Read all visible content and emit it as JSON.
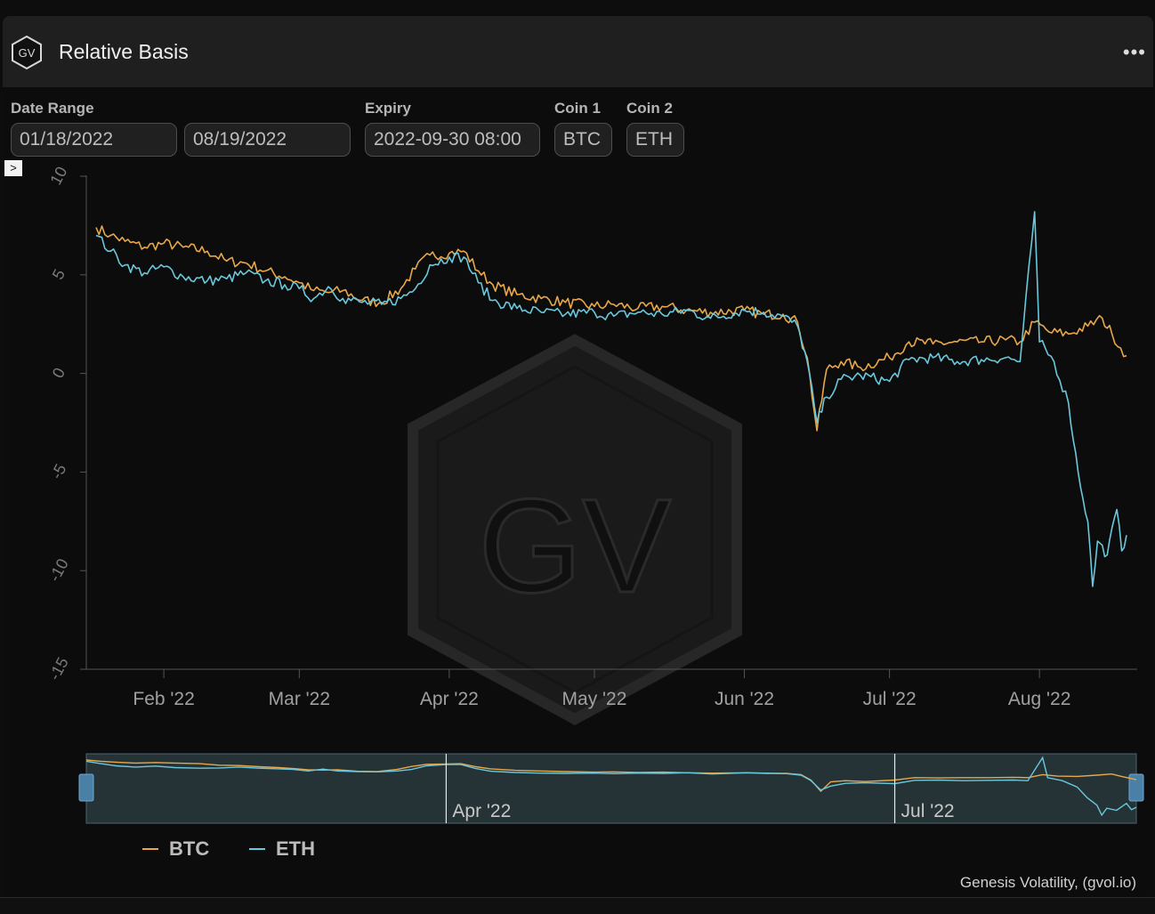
{
  "header": {
    "title": "Relative Basis",
    "logo_text": "GV",
    "more_icon": "more-horizontal-icon"
  },
  "controls": {
    "date_range_label": "Date Range",
    "start_date": "01/18/2022",
    "end_date": "08/19/2022",
    "expiry_label": "Expiry",
    "expiry": "2022-09-30 08:00",
    "coin1_label": "Coin 1",
    "coin1": "BTC",
    "coin2_label": "Coin 2",
    "coin2": "ETH"
  },
  "toggle_glyph": ">",
  "watermark": "GV",
  "navigator": {
    "labels": [
      "Apr '22",
      "Jul '22"
    ]
  },
  "credit": "Genesis Volatility, (gvol.io)",
  "chart_data": {
    "type": "line",
    "title": "",
    "xlabel": "",
    "ylabel": "",
    "x_range": [
      "2022-01-18",
      "2022-08-19"
    ],
    "ylim": [
      -15,
      10
    ],
    "y_ticks": [
      "10",
      "5",
      "0",
      "-5",
      "-10",
      "-15"
    ],
    "x_ticks": [
      {
        "date": "2022-02-01",
        "label": "Feb '22"
      },
      {
        "date": "2022-03-01",
        "label": "Mar '22"
      },
      {
        "date": "2022-04-01",
        "label": "Apr '22"
      },
      {
        "date": "2022-05-01",
        "label": "May '22"
      },
      {
        "date": "2022-06-01",
        "label": "Jun '22"
      },
      {
        "date": "2022-07-01",
        "label": "Jul '22"
      },
      {
        "date": "2022-08-01",
        "label": "Aug '22"
      }
    ],
    "grid": false,
    "legend_position": "bottom-left",
    "series": [
      {
        "name": "BTC",
        "color": "#e8a84a",
        "points": [
          [
            "2022-01-18",
            7.4
          ],
          [
            "2022-01-21",
            7.0
          ],
          [
            "2022-01-24",
            6.7
          ],
          [
            "2022-01-28",
            6.4
          ],
          [
            "2022-02-01",
            6.6
          ],
          [
            "2022-02-05",
            6.4
          ],
          [
            "2022-02-10",
            6.2
          ],
          [
            "2022-02-14",
            5.7
          ],
          [
            "2022-02-18",
            5.6
          ],
          [
            "2022-02-22",
            5.2
          ],
          [
            "2022-02-26",
            4.9
          ],
          [
            "2022-03-01",
            4.6
          ],
          [
            "2022-03-04",
            4.2
          ],
          [
            "2022-03-07",
            4.1
          ],
          [
            "2022-03-10",
            4.2
          ],
          [
            "2022-03-14",
            3.7
          ],
          [
            "2022-03-18",
            3.6
          ],
          [
            "2022-03-22",
            4.3
          ],
          [
            "2022-03-25",
            5.3
          ],
          [
            "2022-03-28",
            6.0
          ],
          [
            "2022-04-01",
            6.1
          ],
          [
            "2022-04-04",
            6.2
          ],
          [
            "2022-04-07",
            5.2
          ],
          [
            "2022-04-10",
            4.5
          ],
          [
            "2022-04-15",
            4.0
          ],
          [
            "2022-04-20",
            3.8
          ],
          [
            "2022-04-25",
            3.6
          ],
          [
            "2022-05-01",
            3.4
          ],
          [
            "2022-05-05",
            3.5
          ],
          [
            "2022-05-10",
            3.3
          ],
          [
            "2022-05-15",
            3.4
          ],
          [
            "2022-05-20",
            3.2
          ],
          [
            "2022-05-25",
            3.1
          ],
          [
            "2022-06-01",
            3.2
          ],
          [
            "2022-06-05",
            3.0
          ],
          [
            "2022-06-09",
            3.0
          ],
          [
            "2022-06-12",
            2.6
          ],
          [
            "2022-06-14",
            0.8
          ],
          [
            "2022-06-16",
            -2.9
          ],
          [
            "2022-06-18",
            0.2
          ],
          [
            "2022-06-21",
            0.6
          ],
          [
            "2022-06-25",
            0.3
          ],
          [
            "2022-07-01",
            0.8
          ],
          [
            "2022-07-05",
            1.6
          ],
          [
            "2022-07-10",
            1.5
          ],
          [
            "2022-07-15",
            1.6
          ],
          [
            "2022-07-20",
            1.6
          ],
          [
            "2022-07-25",
            1.7
          ],
          [
            "2022-07-28",
            1.6
          ],
          [
            "2022-07-31",
            2.6
          ],
          [
            "2022-08-03",
            2.1
          ],
          [
            "2022-08-07",
            2.0
          ],
          [
            "2022-08-11",
            2.4
          ],
          [
            "2022-08-14",
            2.8
          ],
          [
            "2022-08-16",
            2.0
          ],
          [
            "2022-08-19",
            0.9
          ]
        ]
      },
      {
        "name": "ETH",
        "color": "#6ac8dc",
        "points": [
          [
            "2022-01-18",
            7.0
          ],
          [
            "2022-01-21",
            6.2
          ],
          [
            "2022-01-24",
            5.5
          ],
          [
            "2022-01-28",
            5.1
          ],
          [
            "2022-02-01",
            5.4
          ],
          [
            "2022-02-05",
            4.9
          ],
          [
            "2022-02-10",
            4.7
          ],
          [
            "2022-02-14",
            4.8
          ],
          [
            "2022-02-18",
            5.1
          ],
          [
            "2022-02-22",
            4.7
          ],
          [
            "2022-02-26",
            4.5
          ],
          [
            "2022-03-01",
            4.3
          ],
          [
            "2022-03-04",
            3.8
          ],
          [
            "2022-03-07",
            4.4
          ],
          [
            "2022-03-10",
            3.8
          ],
          [
            "2022-03-14",
            3.6
          ],
          [
            "2022-03-18",
            3.5
          ],
          [
            "2022-03-22",
            3.8
          ],
          [
            "2022-03-25",
            4.3
          ],
          [
            "2022-03-28",
            5.5
          ],
          [
            "2022-04-01",
            5.9
          ],
          [
            "2022-04-04",
            5.9
          ],
          [
            "2022-04-07",
            4.6
          ],
          [
            "2022-04-10",
            3.7
          ],
          [
            "2022-04-15",
            3.3
          ],
          [
            "2022-04-20",
            3.1
          ],
          [
            "2022-04-25",
            3.0
          ],
          [
            "2022-05-01",
            3.1
          ],
          [
            "2022-05-05",
            2.9
          ],
          [
            "2022-05-10",
            3.1
          ],
          [
            "2022-05-15",
            3.0
          ],
          [
            "2022-05-20",
            3.2
          ],
          [
            "2022-05-25",
            2.8
          ],
          [
            "2022-06-01",
            3.2
          ],
          [
            "2022-06-05",
            3.1
          ],
          [
            "2022-06-09",
            2.9
          ],
          [
            "2022-06-12",
            2.4
          ],
          [
            "2022-06-14",
            0.6
          ],
          [
            "2022-06-16",
            -2.5
          ],
          [
            "2022-06-18",
            -1.2
          ],
          [
            "2022-06-21",
            -0.3
          ],
          [
            "2022-06-25",
            -0.1
          ],
          [
            "2022-07-01",
            -0.4
          ],
          [
            "2022-07-05",
            0.7
          ],
          [
            "2022-07-10",
            0.8
          ],
          [
            "2022-07-15",
            0.6
          ],
          [
            "2022-07-20",
            0.7
          ],
          [
            "2022-07-25",
            0.8
          ],
          [
            "2022-07-28",
            0.6
          ],
          [
            "2022-07-31",
            8.2
          ],
          [
            "2022-08-01",
            1.6
          ],
          [
            "2022-08-04",
            0.6
          ],
          [
            "2022-08-07",
            -1.5
          ],
          [
            "2022-08-09",
            -5.0
          ],
          [
            "2022-08-11",
            -7.5
          ],
          [
            "2022-08-12",
            -10.8
          ],
          [
            "2022-08-13",
            -8.5
          ],
          [
            "2022-08-15",
            -9.2
          ],
          [
            "2022-08-17",
            -6.9
          ],
          [
            "2022-08-18",
            -9.0
          ],
          [
            "2022-08-19",
            -8.2
          ]
        ]
      }
    ]
  }
}
